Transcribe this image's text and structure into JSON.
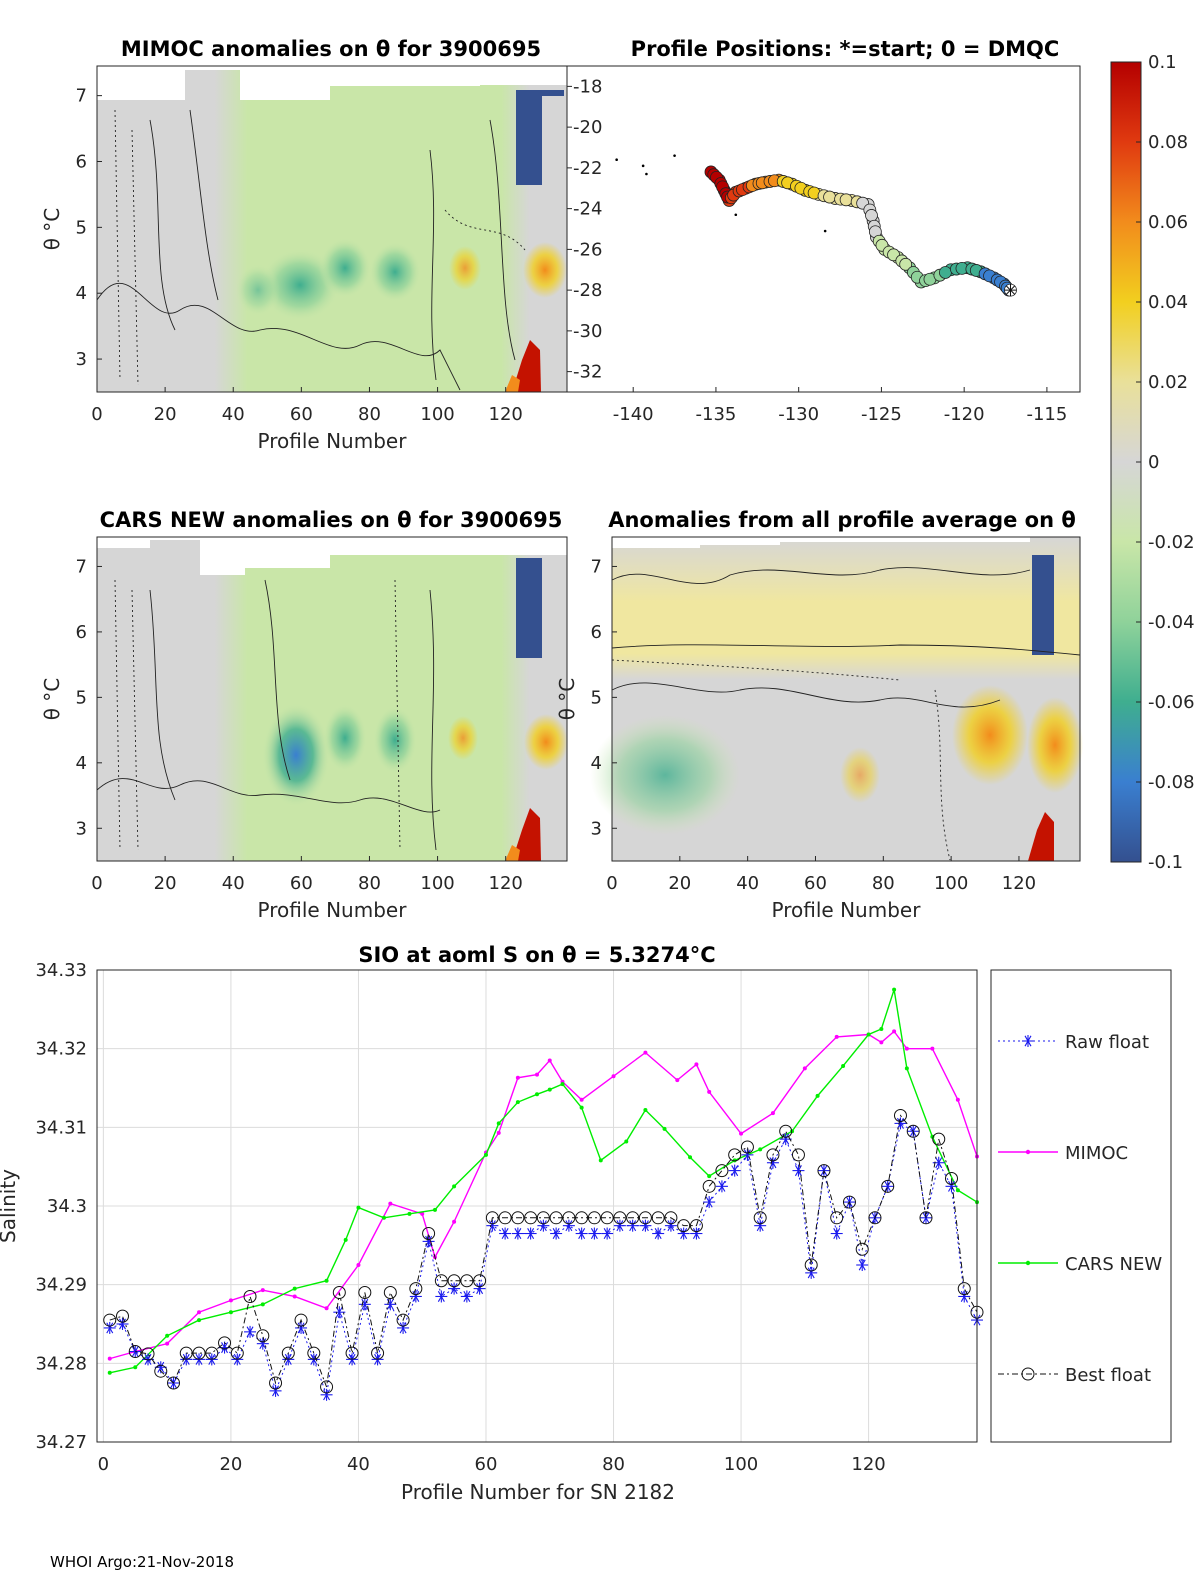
{
  "footer": "WHOI Argo:21-Nov-2018",
  "colorbar": {
    "ticks": [
      "0.1",
      "0.08",
      "0.06",
      "0.04",
      "0.02",
      "0",
      "-0.02",
      "-0.04",
      "-0.06",
      "-0.08",
      "-0.1"
    ],
    "colors": [
      "#b40000",
      "#e03a10",
      "#f28c1c",
      "#f2cf1f",
      "#e9e09a",
      "#d6d6d6",
      "#c9e6a8",
      "#8fd29a",
      "#3fae8f",
      "#3a7fd0",
      "#34508f"
    ]
  },
  "chart_data": [
    {
      "type": "heatmap",
      "id": "mimoc",
      "title": "MIMOC anomalies on θ  for 3900695",
      "xlabel": "Profile Number",
      "ylabel": "θ °C",
      "xticks": [
        "0",
        "20",
        "40",
        "60",
        "80",
        "100",
        "120"
      ],
      "yticks": [
        "3",
        "4",
        "5",
        "6",
        "7"
      ],
      "xlim": [
        0,
        138
      ],
      "ylim": [
        2.5,
        7.45
      ]
    },
    {
      "type": "scatter",
      "id": "positions",
      "title": "Profile Positions: *=start; 0 = DMQC",
      "xticks": [
        "-140",
        "-135",
        "-130",
        "-125",
        "-120",
        "-115"
      ],
      "yticks": [
        "-18",
        "-20",
        "-22",
        "-24",
        "-26",
        "-28",
        "-30",
        "-32"
      ],
      "xlim": [
        -144,
        -113
      ],
      "ylim": [
        -33,
        -17
      ],
      "track": [
        [
          -135.3,
          -22.2
        ],
        [
          -134.8,
          -22.6
        ],
        [
          -134.5,
          -23.1
        ],
        [
          -134.2,
          -23.6
        ],
        [
          -133.8,
          -23.2
        ],
        [
          -133.2,
          -23.0
        ],
        [
          -132.6,
          -22.8
        ],
        [
          -132.0,
          -22.7
        ],
        [
          -131.2,
          -22.6
        ],
        [
          -130.4,
          -22.8
        ],
        [
          -129.6,
          -23.1
        ],
        [
          -128.8,
          -23.3
        ],
        [
          -127.8,
          -23.5
        ],
        [
          -126.8,
          -23.6
        ],
        [
          -125.8,
          -23.8
        ],
        [
          -125.5,
          -24.6
        ],
        [
          -125.3,
          -25.4
        ],
        [
          -124.8,
          -26.0
        ],
        [
          -124.0,
          -26.4
        ],
        [
          -123.3,
          -26.9
        ],
        [
          -122.6,
          -27.6
        ],
        [
          -121.8,
          -27.4
        ],
        [
          -120.8,
          -27.0
        ],
        [
          -119.8,
          -26.9
        ],
        [
          -119.0,
          -27.1
        ],
        [
          -118.2,
          -27.4
        ],
        [
          -117.6,
          -27.7
        ],
        [
          -117.3,
          -28.0
        ]
      ],
      "start": [
        -117.2,
        -28.0
      ],
      "stray_points": [
        [
          -141,
          -21.6
        ],
        [
          -139.4,
          -21.9
        ],
        [
          -139.2,
          -22.3
        ],
        [
          -137.5,
          -21.4
        ],
        [
          -133.8,
          -24.3
        ],
        [
          -128.4,
          -25.1
        ]
      ]
    },
    {
      "type": "heatmap",
      "id": "cars",
      "title": "CARS NEW anomalies on θ for 3900695",
      "xlabel": "Profile Number",
      "ylabel": "θ °C",
      "xticks": [
        "0",
        "20",
        "40",
        "60",
        "80",
        "100",
        "120"
      ],
      "yticks": [
        "3",
        "4",
        "5",
        "6",
        "7"
      ],
      "xlim": [
        0,
        138
      ],
      "ylim": [
        2.5,
        7.45
      ]
    },
    {
      "type": "heatmap",
      "id": "allavg",
      "title": "Anomalies from all profile average on θ",
      "xlabel": "Profile Number",
      "ylabel": "θ °C",
      "xticks": [
        "0",
        "20",
        "40",
        "60",
        "80",
        "100",
        "120"
      ],
      "yticks": [
        "3",
        "4",
        "5",
        "6",
        "7"
      ],
      "xlim": [
        0,
        138
      ],
      "ylim": [
        2.5,
        7.45
      ]
    },
    {
      "type": "line",
      "id": "salinity",
      "title": "SIO at aoml S on θ = 5.3274°C",
      "xlabel": "Profile Number for SN 2182",
      "ylabel": "Salinity",
      "xlim": [
        -1,
        137
      ],
      "ylim": [
        34.27,
        34.33
      ],
      "xticks": [
        "0",
        "20",
        "40",
        "60",
        "80",
        "100",
        "120"
      ],
      "yticks": [
        "34.27",
        "34.28",
        "34.29",
        "34.3",
        "34.31",
        "34.32",
        "34.33"
      ],
      "legend": [
        "Raw float",
        "MIMOC",
        "CARS NEW",
        "Best float"
      ],
      "series": [
        {
          "name": "MIMOC",
          "color": "#ff00ff",
          "x": [
            1,
            5,
            10,
            15,
            20,
            25,
            30,
            35,
            40,
            45,
            50,
            52,
            55,
            60,
            62,
            65,
            68,
            70,
            72,
            75,
            80,
            85,
            90,
            93,
            95,
            100,
            105,
            110,
            115,
            120,
            122,
            124,
            126,
            130,
            134,
            137
          ],
          "values": [
            34.2806,
            34.2815,
            34.2825,
            34.2865,
            34.288,
            34.2893,
            34.2885,
            34.287,
            34.2925,
            34.3003,
            34.299,
            34.2935,
            34.298,
            34.3068,
            34.3093,
            34.3163,
            34.3167,
            34.3185,
            34.3158,
            34.3135,
            34.3165,
            34.3195,
            34.316,
            34.318,
            34.3145,
            34.3092,
            34.3118,
            34.3175,
            34.3215,
            34.3218,
            34.3208,
            34.3222,
            34.32,
            34.32,
            34.3135,
            34.3063
          ]
        },
        {
          "name": "CARS NEW",
          "color": "#00ee00",
          "x": [
            1,
            5,
            10,
            15,
            20,
            25,
            30,
            35,
            38,
            40,
            44,
            48,
            52,
            55,
            60,
            62,
            65,
            68,
            70,
            72,
            75,
            78,
            82,
            85,
            88,
            92,
            95,
            99,
            103,
            108,
            112,
            116,
            120,
            122,
            124,
            126,
            130,
            134,
            137
          ],
          "values": [
            34.2788,
            34.2795,
            34.2835,
            34.2855,
            34.2865,
            34.2875,
            34.2895,
            34.2905,
            34.2957,
            34.2998,
            34.2985,
            34.299,
            34.2995,
            34.3025,
            34.3065,
            34.3105,
            34.3132,
            34.3142,
            34.3148,
            34.3155,
            34.3125,
            34.3058,
            34.3082,
            34.3122,
            34.3098,
            34.3062,
            34.3038,
            34.3058,
            34.3072,
            34.3095,
            34.314,
            34.3178,
            34.3218,
            34.3225,
            34.3275,
            34.3175,
            34.3088,
            34.302,
            34.3005
          ]
        },
        {
          "name": "Raw float",
          "color": "#1a1aee",
          "x": [
            1,
            3,
            5,
            7,
            9,
            11,
            13,
            15,
            17,
            19,
            21,
            23,
            25,
            27,
            29,
            31,
            33,
            35,
            37,
            39,
            41,
            43,
            45,
            47,
            49,
            51,
            53,
            55,
            57,
            59,
            61,
            63,
            65,
            67,
            69,
            71,
            73,
            75,
            77,
            79,
            81,
            83,
            85,
            87,
            89,
            91,
            93,
            95,
            97,
            99,
            101,
            103,
            105,
            107,
            109,
            111,
            113,
            115,
            117,
            119,
            121,
            123,
            125,
            127,
            129,
            131,
            133,
            135,
            137
          ],
          "values": [
            34.2845,
            34.285,
            34.2815,
            34.2805,
            34.2795,
            34.2775,
            34.2805,
            34.2805,
            34.2805,
            34.282,
            34.2805,
            34.284,
            34.2825,
            34.2765,
            34.2805,
            34.2845,
            34.2805,
            34.276,
            34.2865,
            34.2805,
            34.2875,
            34.2805,
            34.2875,
            34.2845,
            34.2885,
            34.2955,
            34.2885,
            34.2895,
            34.2885,
            34.2895,
            34.2975,
            34.2965,
            34.2965,
            34.2965,
            34.2975,
            34.2965,
            34.2975,
            34.2965,
            34.2965,
            34.2965,
            34.2975,
            34.2975,
            34.2975,
            34.2965,
            34.2975,
            34.2965,
            34.2965,
            34.3005,
            34.3025,
            34.3045,
            34.3065,
            34.2975,
            34.3055,
            34.3085,
            34.3045,
            34.2915,
            34.3045,
            34.2965,
            34.3005,
            34.2925,
            34.2985,
            34.3025,
            34.3105,
            34.3095,
            34.2985,
            34.3055,
            34.3025,
            34.2885,
            34.2855
          ]
        },
        {
          "name": "Best float",
          "color": "#111111",
          "x": [
            1,
            3,
            5,
            7,
            9,
            11,
            13,
            15,
            17,
            19,
            21,
            23,
            25,
            27,
            29,
            31,
            33,
            35,
            37,
            39,
            41,
            43,
            45,
            47,
            49,
            51,
            53,
            55,
            57,
            59,
            61,
            63,
            65,
            67,
            69,
            71,
            73,
            75,
            77,
            79,
            81,
            83,
            85,
            87,
            89,
            91,
            93,
            95,
            97,
            99,
            101,
            103,
            105,
            107,
            109,
            111,
            113,
            115,
            117,
            119,
            121,
            123,
            125,
            127,
            129,
            131,
            133,
            135,
            137
          ],
          "values": [
            34.2855,
            34.286,
            34.2815,
            34.2812,
            34.279,
            34.2775,
            34.2813,
            34.2813,
            34.2813,
            34.2826,
            34.2813,
            34.2885,
            34.2835,
            34.2775,
            34.2813,
            34.2855,
            34.2813,
            34.277,
            34.289,
            34.2813,
            34.289,
            34.2813,
            34.289,
            34.2855,
            34.2895,
            34.2965,
            34.2905,
            34.2905,
            34.2905,
            34.2905,
            34.2985,
            34.2985,
            34.2985,
            34.2985,
            34.2985,
            34.2985,
            34.2985,
            34.2985,
            34.2985,
            34.2985,
            34.2985,
            34.2985,
            34.2985,
            34.2985,
            34.2985,
            34.2975,
            34.2975,
            34.3025,
            34.3045,
            34.3065,
            34.3075,
            34.2985,
            34.3065,
            34.3095,
            34.3065,
            34.2925,
            34.3045,
            34.2985,
            34.3005,
            34.2945,
            34.2985,
            34.3025,
            34.3115,
            34.3095,
            34.2985,
            34.3085,
            34.3035,
            34.2895,
            34.2865
          ]
        }
      ]
    }
  ]
}
